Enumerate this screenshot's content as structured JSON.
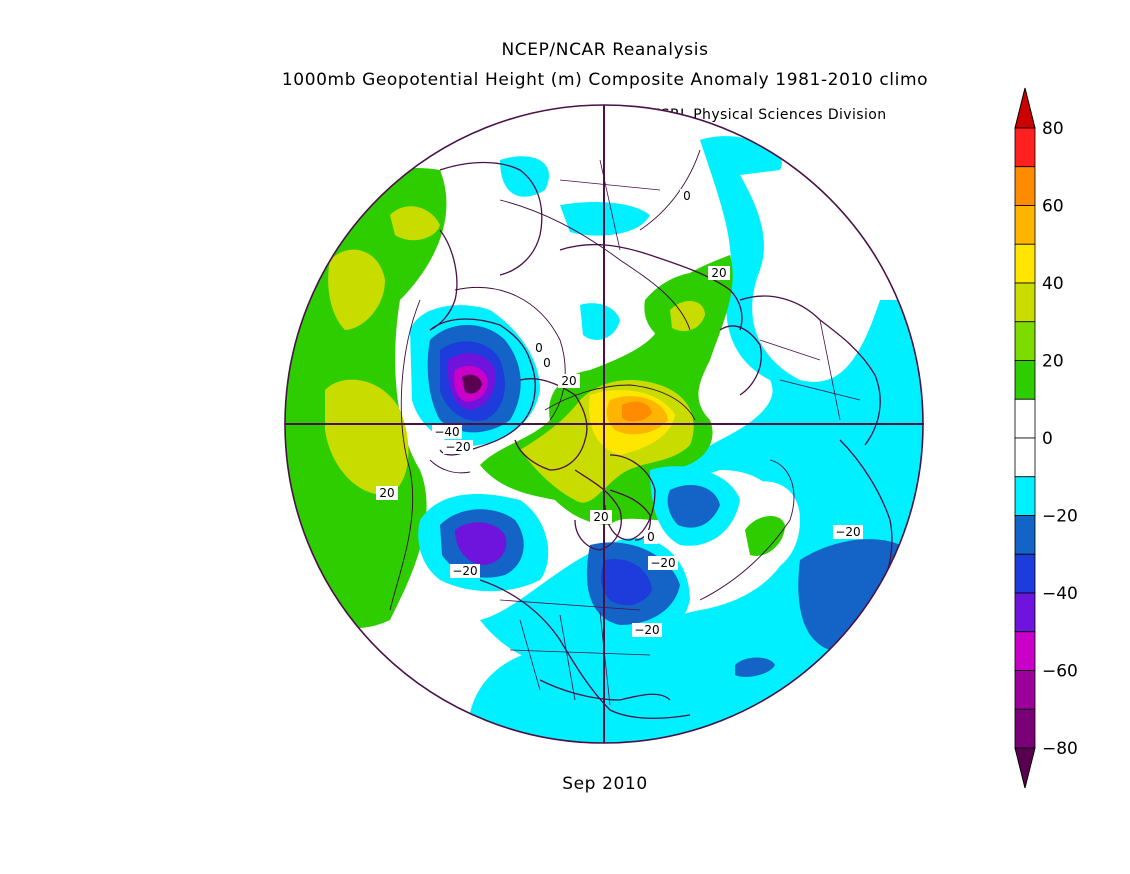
{
  "header": {
    "line1": "NCEP/NCAR Reanalysis",
    "line2": "1000mb Geopotential Height (m) Composite Anomaly 1981-2010 climo",
    "credit": "NOAA/ESRL Physical Sciences Division"
  },
  "footer": {
    "date": "Sep 2010"
  },
  "colorbar": {
    "ticks": [
      "80",
      "60",
      "40",
      "20",
      "0",
      "−20",
      "−40",
      "−60",
      "−80"
    ],
    "colors": [
      "#cc0000",
      "#ff2020",
      "#ff8c00",
      "#ffb400",
      "#ffe600",
      "#c8dc00",
      "#7cdc00",
      "#2dcd00",
      "#ffffff",
      "#ffffff",
      "#00f0ff",
      "#1464c8",
      "#1e3cdc",
      "#6e14dc",
      "#c800c8",
      "#9b009b",
      "#7a0078",
      "#5a0050"
    ]
  },
  "map": {
    "projection": "north-polar-stereographic",
    "contour_labels": [
      "0",
      "0",
      "0",
      "0",
      "20",
      "20",
      "20",
      "20",
      "−40",
      "−20",
      "−20",
      "−20",
      "−20",
      "−20"
    ],
    "fill_colors": {
      "pos20": "#2dcd00",
      "pos30": "#c8dc00",
      "pos40": "#ffe600",
      "pos50": "#ffb400",
      "pos60": "#ff8c00",
      "zero": "#ffffff",
      "neg10": "#00f0ff",
      "neg20": "#1464c8",
      "neg30": "#1e3cdc",
      "neg40": "#6e14dc",
      "neg50": "#c800c8",
      "neg60": "#9b009b",
      "neg80": "#5a0050",
      "coast": "#4a1048",
      "contour": "#3a0a3a"
    }
  }
}
